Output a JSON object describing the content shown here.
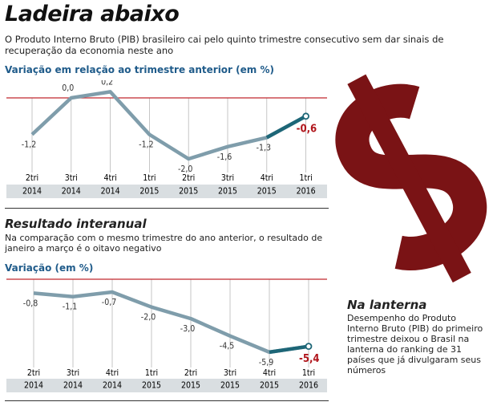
{
  "header": {
    "title": "Ladeira abaixo",
    "subtitle": "O Produto Interno Bruto (PIB) brasileiro cai pelo quinto trimestre consecutivo sem dar sinais de recuperação da economia neste ano"
  },
  "side_note": {
    "title": "Na lanterna",
    "text": "Desempenho do Produto Interno Bruto (PIB) do primeiro trimestre deixou o Brasil na lanterna do ranking de 31 países que já divulgaram seus números"
  },
  "chart_data": [
    {
      "type": "line",
      "y_label": "Variação em relação ao trimestre anterior (em %)",
      "categories": [
        [
          "2tri",
          "2014"
        ],
        [
          "3tri",
          "2014"
        ],
        [
          "4tri",
          "2014"
        ],
        [
          "1tri",
          "2015"
        ],
        [
          "2tri",
          "2015"
        ],
        [
          "3tri",
          "2015"
        ],
        [
          "4tri",
          "2015"
        ],
        [
          "1tri",
          "2016"
        ]
      ],
      "series": [
        {
          "color": "#7f9dab",
          "highlight_color": "#1d6677",
          "label_color": "#b0151b",
          "values": [
            -1.2,
            0.0,
            0.2,
            -1.2,
            -2.0,
            -1.6,
            -1.3,
            -0.6
          ],
          "value_labels": [
            "-1,2",
            "0,0",
            "0,2",
            "-1,2",
            "-2,0",
            "-1,6",
            "-1,3",
            "-0,6"
          ]
        }
      ],
      "ylim": [
        -2.6,
        0.4
      ],
      "grid": "x"
    },
    {
      "type": "line",
      "title": "Resultado interanual",
      "subtitle": "Na comparação com o mesmo trimestre do ano anterior, o resultado de janeiro a março é o oitavo negativo",
      "y_label": "Variação (em %)",
      "categories": [
        [
          "2tri",
          "2014"
        ],
        [
          "3tri",
          "2014"
        ],
        [
          "4tri",
          "2014"
        ],
        [
          "1tri",
          "2015"
        ],
        [
          "2tri",
          "2015"
        ],
        [
          "3tri",
          "2015"
        ],
        [
          "4tri",
          "2015"
        ],
        [
          "1tri",
          "2016"
        ]
      ],
      "series": [
        {
          "color": "#7f9dab",
          "highlight_color": "#1d6677",
          "label_color": "#b0151b",
          "values": [
            -0.8,
            -1.1,
            -0.7,
            -2.0,
            -3.0,
            -4.5,
            -5.9,
            -5.4
          ],
          "value_labels": [
            "-0,8",
            "-1,1",
            "-0,7",
            "-2,0",
            "-3,0",
            "-4,5",
            "-5,9",
            "-5,4"
          ]
        }
      ],
      "ylim": [
        -6.5,
        0
      ],
      "grid": "x"
    }
  ]
}
